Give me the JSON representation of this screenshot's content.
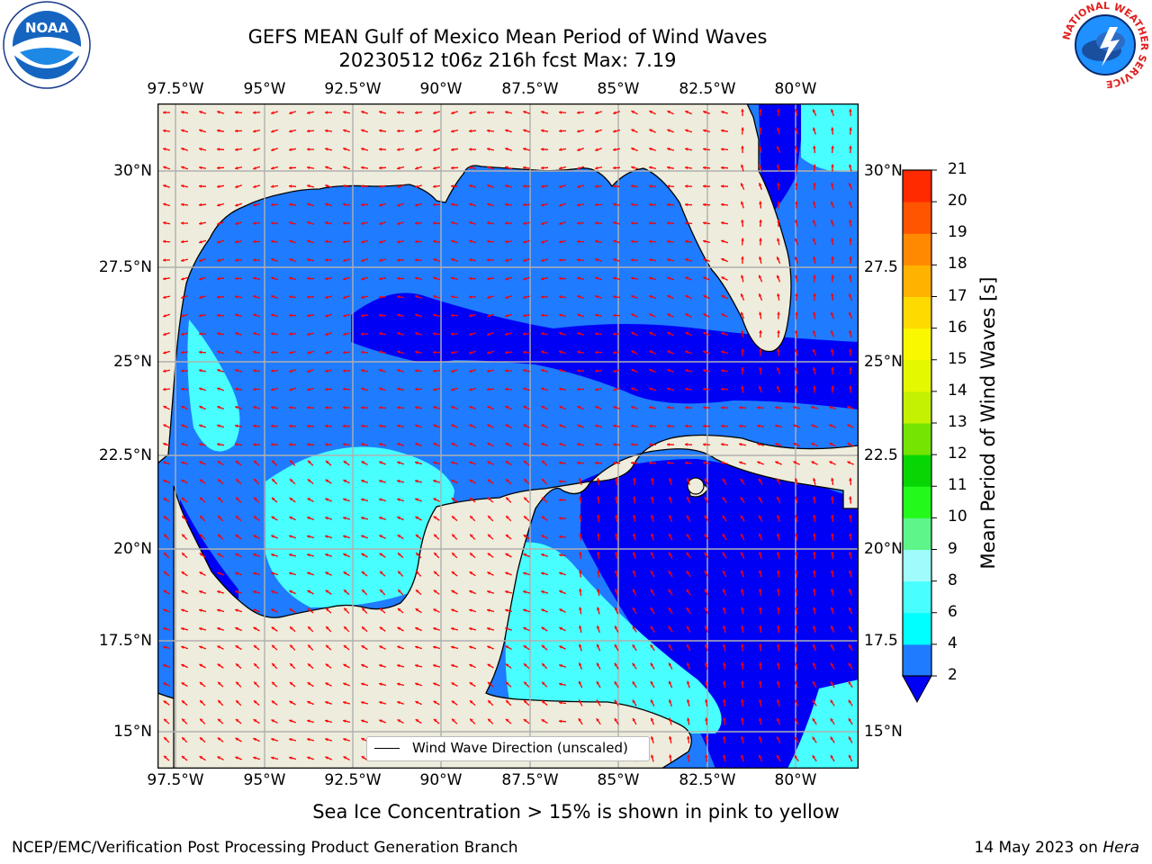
{
  "title": {
    "line1": "GEFS MEAN Gulf of Mexico Mean Period of Wind Waves",
    "line2": "20230512 t06z 216h fcst   Max: 7.19"
  },
  "map": {
    "lon_labels": [
      "97.5°W",
      "95°W",
      "92.5°W",
      "90°W",
      "87.5°W",
      "85°W",
      "82.5°W",
      "80°W"
    ],
    "lat_labels_left": [
      "30°N",
      "27.5°N",
      "25°N",
      "22.5°N",
      "20°N",
      "17.5°N",
      "15°N"
    ],
    "lat_labels_right": [
      "30°N",
      "27.5",
      "25°N",
      "22.5",
      "20°N",
      "17.5",
      "15°N"
    ],
    "land_color": "#eeecdc",
    "grid_color": "#b0b0b0"
  },
  "colorbar": {
    "label": "Mean Period of Wind Waves [s]",
    "ticks": [
      "2",
      "4",
      "6",
      "8",
      "9",
      "10",
      "11",
      "12",
      "13",
      "14",
      "15",
      "16",
      "17",
      "18",
      "19",
      "20",
      "21"
    ],
    "colors": [
      "#0000f5",
      "#1f7bff",
      "#00ffff",
      "#48fefe",
      "#a0fcfc",
      "#5cf68b",
      "#23fa1c",
      "#08d604",
      "#74e400",
      "#c4f101",
      "#e4f800",
      "#faf800",
      "#ffda00",
      "#ffb200",
      "#ff8900",
      "#ff5400",
      "#ff2a00",
      "#ff0000"
    ]
  },
  "legend": {
    "label": "Wind Wave Direction (unscaled)"
  },
  "footer": {
    "note": "Sea Ice Concentration > 15% is shown in pink to yellow",
    "left": "NCEP/EMC/Verification Post Processing Product Generation Branch",
    "right_prefix": "14 May 2023 on ",
    "right_host": "Hera"
  },
  "logos": {
    "noaa_text": "NOAA",
    "nws_ring_text": "NATIONAL WEATHER SERVICE"
  }
}
